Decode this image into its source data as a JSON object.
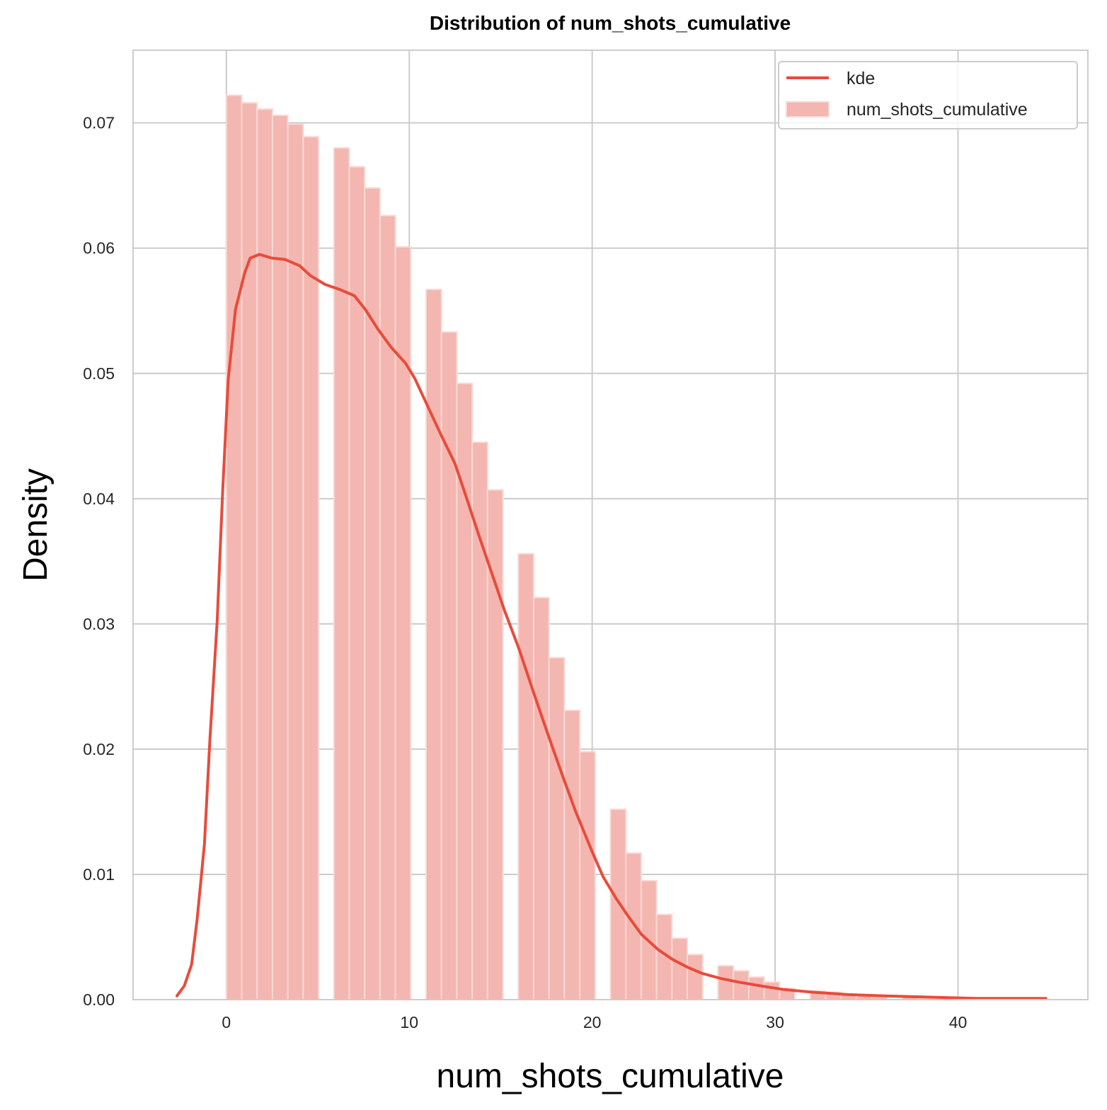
{
  "colors": {
    "bar_fill": "#f4b6b0",
    "bar_edge": "#f9d9d5",
    "line": "#e74c3c",
    "grid": "#cccccc",
    "frame": "#cccccc",
    "background": "#ffffff"
  },
  "chart_data": {
    "type": "bar",
    "title": "Distribution of num_shots_cumulative",
    "xlabel": "num_shots_cumulative",
    "ylabel": "Density",
    "xlim": [
      -5.1,
      47.1
    ],
    "ylim": [
      0,
      0.0758
    ],
    "xticks": [
      0,
      10,
      20,
      30,
      40
    ],
    "xtick_labels": [
      "0",
      "10",
      "20",
      "30",
      "40"
    ],
    "yticks": [
      0,
      0.01,
      0.02,
      0.03,
      0.04,
      0.05,
      0.06,
      0.07
    ],
    "ytick_labels": [
      "0.00",
      "0.01",
      "0.02",
      "0.03",
      "0.04",
      "0.05",
      "0.06",
      "0.07"
    ],
    "grid": true,
    "legend_position": "top-right",
    "legend": [
      "kde",
      "num_shots_cumulative"
    ],
    "bin_width": 0.84,
    "bins": [
      {
        "x": 0.0,
        "density": 0.0722
      },
      {
        "x": 0.84,
        "density": 0.0716
      },
      {
        "x": 1.68,
        "density": 0.0711
      },
      {
        "x": 2.52,
        "density": 0.0706
      },
      {
        "x": 3.36,
        "density": 0.0699
      },
      {
        "x": 4.2,
        "density": 0.0689
      },
      {
        "x": 5.04,
        "density": 0.0
      },
      {
        "x": 5.88,
        "density": 0.068
      },
      {
        "x": 6.72,
        "density": 0.0665
      },
      {
        "x": 7.56,
        "density": 0.0648
      },
      {
        "x": 8.4,
        "density": 0.0626
      },
      {
        "x": 9.24,
        "density": 0.0601
      },
      {
        "x": 10.08,
        "density": 0.0
      },
      {
        "x": 10.92,
        "density": 0.0567
      },
      {
        "x": 11.76,
        "density": 0.0533
      },
      {
        "x": 12.6,
        "density": 0.0492
      },
      {
        "x": 13.44,
        "density": 0.0445
      },
      {
        "x": 14.28,
        "density": 0.0407
      },
      {
        "x": 15.12,
        "density": 0.0
      },
      {
        "x": 15.96,
        "density": 0.0356
      },
      {
        "x": 16.8,
        "density": 0.0321
      },
      {
        "x": 17.64,
        "density": 0.0273
      },
      {
        "x": 18.48,
        "density": 0.0231
      },
      {
        "x": 19.32,
        "density": 0.0198
      },
      {
        "x": 20.16,
        "density": 0.0
      },
      {
        "x": 21.0,
        "density": 0.0152
      },
      {
        "x": 21.84,
        "density": 0.0117
      },
      {
        "x": 22.68,
        "density": 0.0095
      },
      {
        "x": 23.52,
        "density": 0.0068
      },
      {
        "x": 24.36,
        "density": 0.0049
      },
      {
        "x": 25.2,
        "density": 0.0036
      },
      {
        "x": 26.04,
        "density": 0.0
      },
      {
        "x": 26.88,
        "density": 0.0027
      },
      {
        "x": 27.72,
        "density": 0.0023
      },
      {
        "x": 28.56,
        "density": 0.0018
      },
      {
        "x": 29.4,
        "density": 0.0014
      },
      {
        "x": 30.24,
        "density": 0.0009
      },
      {
        "x": 31.08,
        "density": 0.0
      },
      {
        "x": 31.92,
        "density": 0.0007
      },
      {
        "x": 32.76,
        "density": 0.0006
      },
      {
        "x": 33.6,
        "density": 0.0004
      },
      {
        "x": 34.44,
        "density": 0.0003
      },
      {
        "x": 35.28,
        "density": 0.0002
      },
      {
        "x": 36.12,
        "density": 0.0
      },
      {
        "x": 36.96,
        "density": 0.0002
      },
      {
        "x": 37.8,
        "density": 0.0001
      },
      {
        "x": 38.64,
        "density": 0.0001
      },
      {
        "x": 39.48,
        "density": 0.0001
      },
      {
        "x": 40.32,
        "density": 0.0001
      },
      {
        "x": 41.16,
        "density": 0.0
      },
      {
        "x": 42.0,
        "density": 0.0001
      },
      {
        "x": 42.84,
        "density": 0.0001
      },
      {
        "x": 43.68,
        "density": 0.0001
      }
    ],
    "kde": {
      "name": "kde",
      "x": [
        -2.7,
        -2.3,
        -1.9,
        -1.6,
        -1.2,
        -0.9,
        -0.5,
        -0.2,
        0.1,
        0.5,
        1.0,
        1.3,
        1.8,
        2.5,
        3.2,
        4.0,
        4.6,
        5.4,
        6.2,
        7.0,
        7.6,
        8.3,
        9.0,
        9.8,
        10.3,
        11.0,
        11.7,
        12.5,
        13.1,
        13.8,
        14.5,
        15.2,
        16.0,
        16.8,
        17.6,
        18.4,
        19.1,
        20.0,
        20.6,
        21.3,
        22.0,
        22.7,
        23.6,
        24.4,
        25.2,
        26.0,
        27.0,
        28.0,
        29.2,
        30.5,
        32.0,
        34.0,
        36.0,
        38.5,
        41.0,
        43.5,
        44.8
      ],
      "y": [
        0.0003,
        0.0011,
        0.0028,
        0.0064,
        0.0124,
        0.0207,
        0.0303,
        0.0406,
        0.0495,
        0.0551,
        0.058,
        0.0592,
        0.0595,
        0.0592,
        0.0591,
        0.0586,
        0.0578,
        0.0571,
        0.0567,
        0.0562,
        0.0551,
        0.0535,
        0.0521,
        0.0508,
        0.0496,
        0.0474,
        0.0452,
        0.0428,
        0.0402,
        0.0371,
        0.0341,
        0.0311,
        0.028,
        0.0245,
        0.0211,
        0.0178,
        0.015,
        0.0118,
        0.0098,
        0.0081,
        0.0066,
        0.0052,
        0.004,
        0.0032,
        0.0026,
        0.0021,
        0.0017,
        0.0014,
        0.0011,
        0.0008,
        0.0006,
        0.0004,
        0.0003,
        0.0002,
        0.0001,
        0.0001,
        0.0001
      ]
    }
  }
}
